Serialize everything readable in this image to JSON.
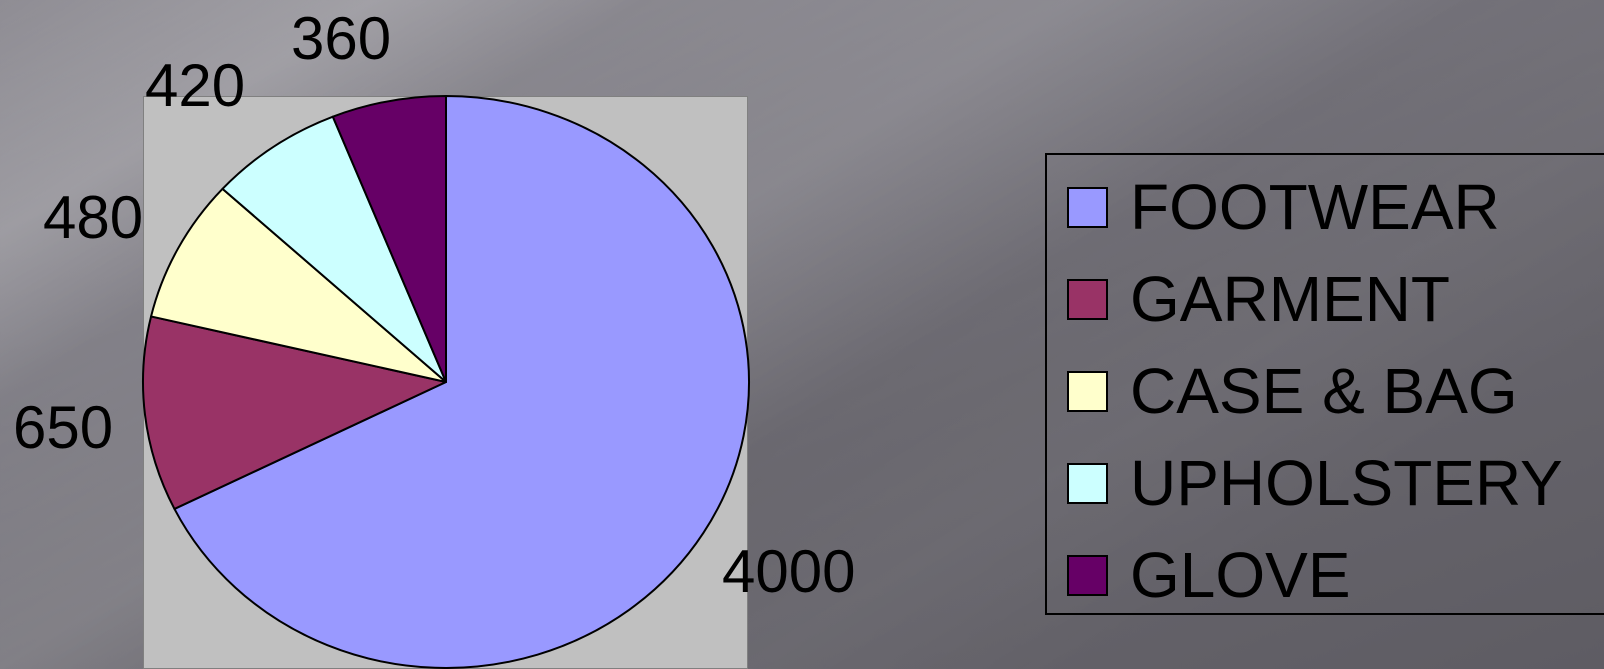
{
  "chart_data": {
    "type": "pie",
    "title": "",
    "categories": [
      "FOOTWEAR",
      "GARMENT",
      "CASE & BAG",
      "UPHOLSTERY",
      "GLOVE"
    ],
    "values": [
      4000,
      650,
      480,
      420,
      360
    ],
    "data_labels": [
      "4000",
      "650",
      "480",
      "420",
      "360"
    ],
    "colors": [
      "#9999FF",
      "#993366",
      "#FFFFCC",
      "#CCFFFF",
      "#660066"
    ],
    "start_angle": "12 o'clock",
    "direction": "clockwise",
    "legend": {
      "position": "right",
      "entries": [
        "FOOTWEAR",
        "GARMENT",
        "CASE & BAG",
        "UPHOLSTERY",
        "GLOVE"
      ]
    }
  }
}
